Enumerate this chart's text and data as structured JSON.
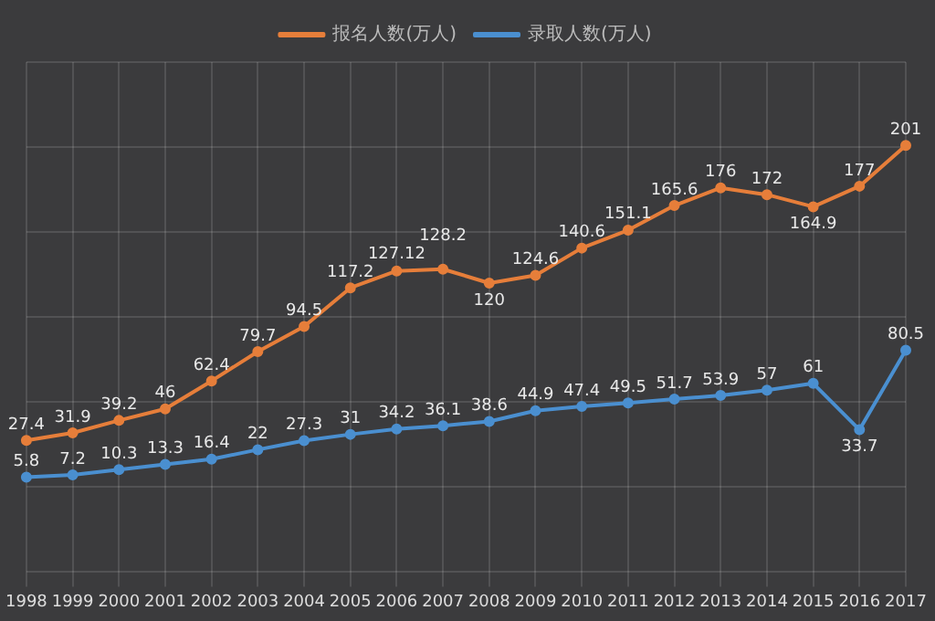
{
  "chart_data": {
    "type": "line",
    "categories": [
      "1998",
      "1999",
      "2000",
      "2001",
      "2002",
      "2003",
      "2004",
      "2005",
      "2006",
      "2007",
      "2008",
      "2009",
      "2010",
      "2011",
      "2012",
      "2013",
      "2014",
      "2015",
      "2016",
      "2017"
    ],
    "series": [
      {
        "name": "报名人数(万人)",
        "color": "#e67e3a",
        "values": [
          27.4,
          31.9,
          39.2,
          46,
          62.4,
          79.7,
          94.5,
          117.2,
          127.12,
          128.2,
          120,
          124.6,
          140.6,
          151.1,
          165.6,
          176,
          172,
          164.9,
          177,
          201
        ]
      },
      {
        "name": "录取人数(万人)",
        "color": "#4a8fd0",
        "values": [
          5.8,
          7.2,
          10.3,
          13.3,
          16.4,
          22,
          27.3,
          31,
          34.2,
          36.1,
          38.6,
          44.9,
          47.4,
          49.5,
          51.7,
          53.9,
          57,
          61,
          33.7,
          80.5
        ]
      }
    ],
    "data_labels": true,
    "grid": true,
    "legend": "top",
    "marker": "circle",
    "line_style": "solid"
  }
}
